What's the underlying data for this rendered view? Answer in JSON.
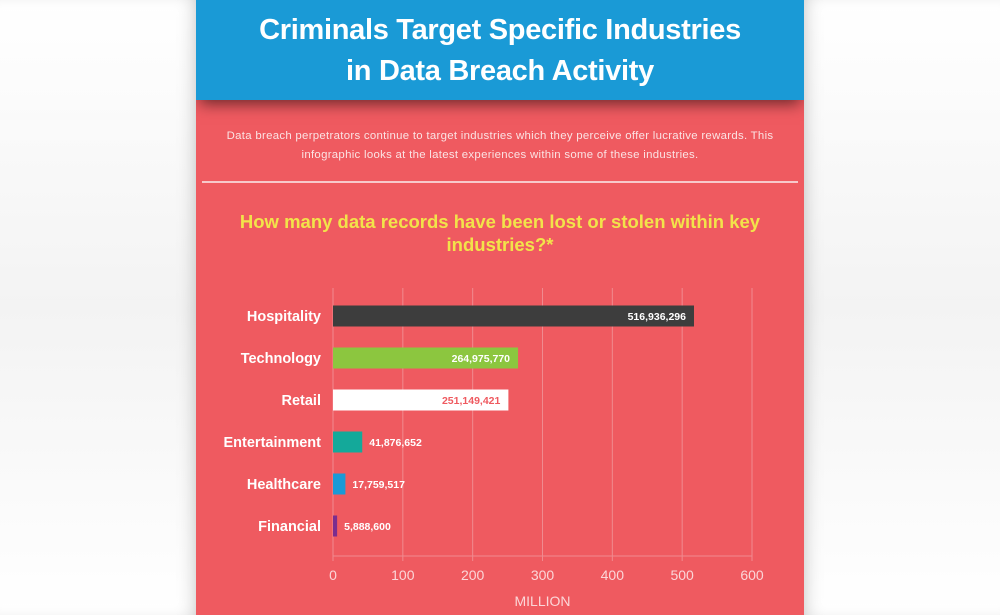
{
  "header": {
    "title": "Criminals Target Specific Industries\nin Data Breach Activity"
  },
  "intro": {
    "text": "Data breach perpetrators continue to target industries which they perceive offer lucrative rewards. This infographic looks at the latest experiences within some of these industries."
  },
  "question": {
    "text": "How many data records have been lost or stolen within key industries?*"
  },
  "colors": {
    "panel": "#ef5a60",
    "header": "#1a9ad6",
    "question": "#f2e34a",
    "grid": "#f08a8f",
    "axis_text": "#fbd6d8"
  },
  "chart_data": {
    "type": "bar",
    "orientation": "horizontal",
    "categories": [
      "Hospitality",
      "Technology",
      "Retail",
      "Entertainment",
      "Healthcare",
      "Financial"
    ],
    "values": [
      516936296,
      264975770,
      251149421,
      41876652,
      17759517,
      5888600
    ],
    "value_labels": [
      "516,936,296",
      "264,975,770",
      "251,149,421",
      "41,876,652",
      "17,759,517",
      "5,888,600"
    ],
    "bar_colors": [
      "#3d3d3d",
      "#8cc63f",
      "#ffffff",
      "#14a99a",
      "#1a9ad6",
      "#7b2d8e"
    ],
    "label_colors": [
      "#ffffff",
      "#ffffff",
      "#ef5a60",
      "#ffffff",
      "#ffffff",
      "#ffffff"
    ],
    "label_inside": [
      true,
      true,
      true,
      false,
      false,
      false
    ],
    "xlabel": "MILLION",
    "ylabel": "",
    "x_ticks": [
      0,
      100,
      200,
      300,
      400,
      500,
      600
    ],
    "xlim": [
      0,
      600
    ],
    "unit": 1000000,
    "grid": true
  }
}
